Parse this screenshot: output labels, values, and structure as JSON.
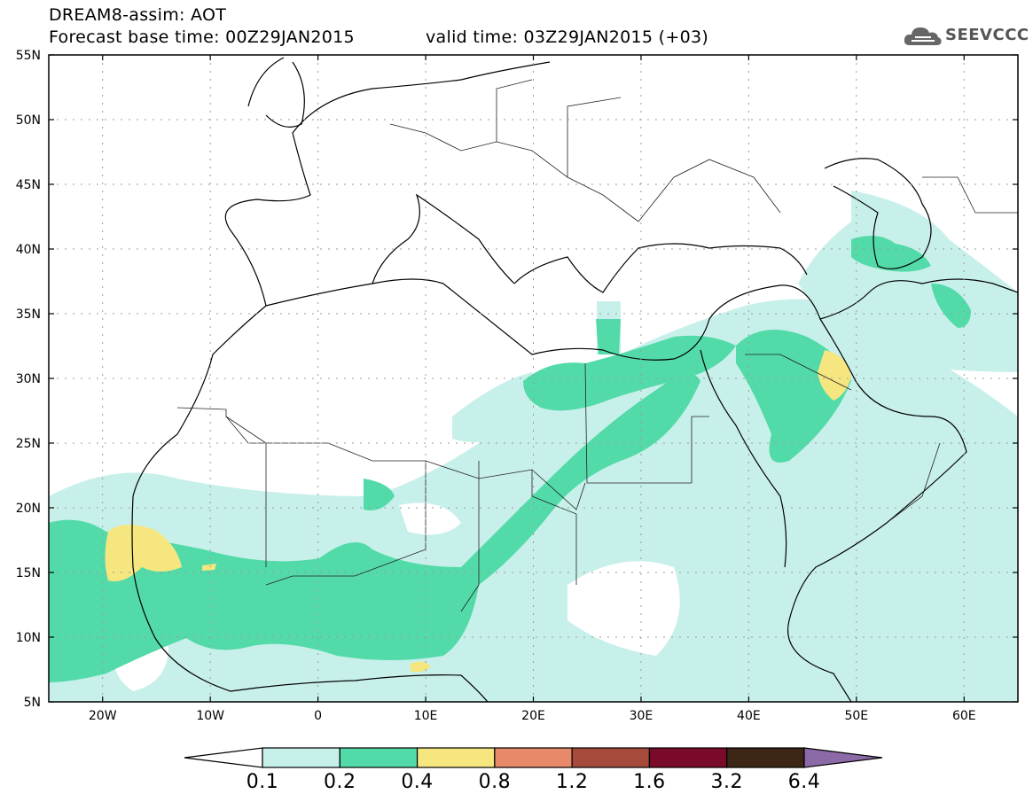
{
  "header": {
    "title": "DREAM8-assim: AOT",
    "base_time": "Forecast base time: 00Z29JAN2015",
    "valid_time": "valid time: 03Z29JAN2015 (+03)"
  },
  "logo": {
    "text": "SEEVCCC",
    "icon": "cloud-icon"
  },
  "map": {
    "lat_labels": [
      "55N",
      "50N",
      "45N",
      "40N",
      "35N",
      "30N",
      "25N",
      "20N",
      "15N",
      "10N",
      "5N"
    ],
    "lon_labels": [
      "20W",
      "10W",
      "0",
      "10E",
      "20E",
      "30E",
      "40E",
      "50E",
      "60E"
    ]
  },
  "colorbar": {
    "labels": [
      "0.1",
      "0.2",
      "0.4",
      "0.8",
      "1.2",
      "1.6",
      "3.2",
      "6.4"
    ],
    "colors": [
      "#ffffff",
      "#c8f0ea",
      "#52dba8",
      "#f5e680",
      "#e8896a",
      "#a64a3c",
      "#7a0a2a",
      "#3e2616",
      "#8c6aa8"
    ]
  }
}
